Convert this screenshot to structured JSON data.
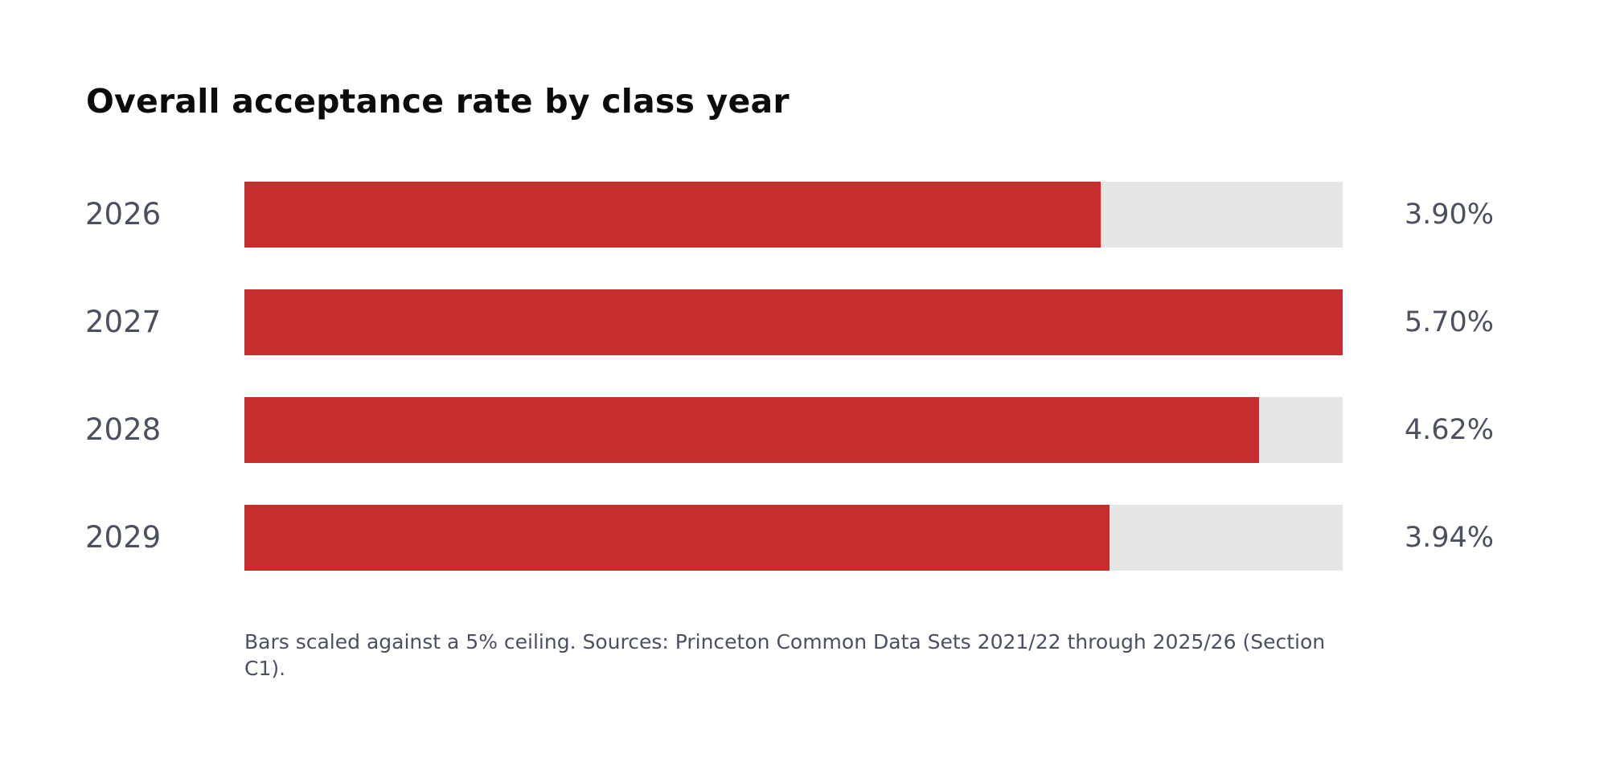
{
  "chart_data": {
    "type": "bar",
    "orientation": "horizontal",
    "title": "Overall acceptance rate by class year",
    "categories": [
      "2026",
      "2027",
      "2028",
      "2029"
    ],
    "values": [
      3.9,
      5.7,
      4.62,
      3.94
    ],
    "value_labels": [
      "3.90%",
      "5.70%",
      "4.62%",
      "3.94%"
    ],
    "unit": "%",
    "scale_max": 5,
    "xlabel": "",
    "ylabel": "",
    "grid": false,
    "legend": "none",
    "note": "Bars scaled against a 5% ceiling. Sources: Princeton Common Data Sets 2021/22 through 2025/26 (Section C1).",
    "colors": {
      "bar": "#c72c2f",
      "track": "#e6e6e6",
      "title": "#0b0b0b",
      "label": "#4b5060"
    }
  }
}
